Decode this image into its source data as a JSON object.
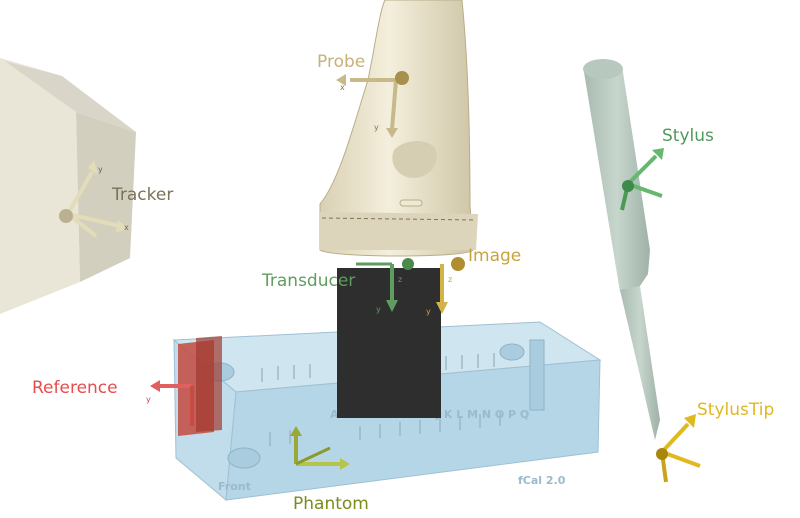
{
  "labels": {
    "probe": "Probe",
    "tracker": "Tracker",
    "stylus": "Stylus",
    "transducer": "Transducer",
    "image": "Image",
    "reference": "Reference",
    "stylus_tip": "StylusTip",
    "phantom": "Phantom"
  },
  "phantom_text": {
    "front": "Front",
    "letters": "A B C D E F G H I J K L M N O P Q",
    "brand": "fCal 2.0"
  },
  "axes": {
    "x": "x",
    "y": "y",
    "z": "z"
  },
  "colors": {
    "probe": "#c8b27a",
    "tracker": "#7a7259",
    "stylus": "#4f9a5c",
    "transducer": "#5f9d5f",
    "image": "#c8a43a",
    "reference": "#e64c4c",
    "stylus_tip": "#e0b820",
    "phantom": "#7b8c1c",
    "phantom_body": "#a9cfe3",
    "probe_body": "#ede6cf",
    "stylus_body": "#b4c7bd",
    "ultrasound_image": "#2e2e2e"
  }
}
